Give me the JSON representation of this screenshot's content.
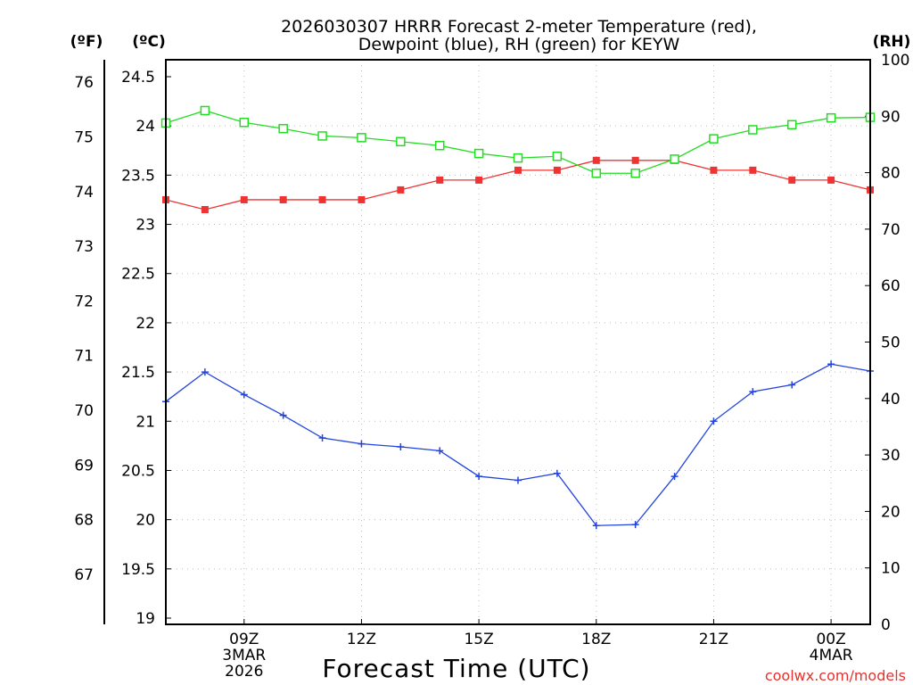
{
  "chart_data": {
    "type": "line",
    "title": [
      "2026030307 HRRR Forecast 2-meter Temperature (red),",
      "Dewpoint (blue), RH (green) for KEYW"
    ],
    "xlabel": "Forecast Time (UTC)",
    "credit": "coolwx.com/models",
    "units": {
      "fahrenheit": "(ºF)",
      "celsius": "(ºC)",
      "rh": "(RH)"
    },
    "x_hours": [
      7,
      8,
      9,
      10,
      11,
      12,
      13,
      14,
      15,
      16,
      17,
      18,
      19,
      20,
      21,
      22,
      23,
      24,
      25
    ],
    "xlim": [
      7,
      25
    ],
    "x_ticks": [
      {
        "hour": 9,
        "lines": [
          "09Z",
          "3MAR",
          "2026"
        ]
      },
      {
        "hour": 12,
        "lines": [
          "12Z"
        ]
      },
      {
        "hour": 15,
        "lines": [
          "15Z"
        ]
      },
      {
        "hour": 18,
        "lines": [
          "18Z"
        ]
      },
      {
        "hour": 21,
        "lines": [
          "21Z"
        ]
      },
      {
        "hour": 24,
        "lines": [
          "00Z",
          "4MAR"
        ]
      }
    ],
    "y_celsius": {
      "ylim": [
        19,
        24.5
      ],
      "ticks": [
        "19",
        "19.5",
        "20",
        "20.5",
        "21",
        "21.5",
        "22",
        "22.5",
        "23",
        "23.5",
        "24",
        "24.5"
      ]
    },
    "y_fahrenheit": {
      "ticks": [
        "67",
        "68",
        "69",
        "70",
        "71",
        "72",
        "73",
        "74",
        "75",
        "76"
      ]
    },
    "y_rh": {
      "ylim": [
        0,
        100
      ],
      "ticks": [
        "0",
        "10",
        "20",
        "30",
        "40",
        "50",
        "60",
        "70",
        "80",
        "90",
        "100"
      ]
    },
    "series": [
      {
        "name": "2-meter Temperature",
        "color": "#ee3333",
        "marker": "filled-square",
        "axis": "celsius",
        "values": [
          23.25,
          23.15,
          23.25,
          23.25,
          23.25,
          23.25,
          23.35,
          23.45,
          23.45,
          23.55,
          23.55,
          23.65,
          23.65,
          23.65,
          23.55,
          23.55,
          23.45,
          23.45,
          23.35
        ]
      },
      {
        "name": "Dewpoint",
        "color": "#2244dd",
        "marker": "plus",
        "axis": "celsius",
        "values": [
          21.2,
          21.5,
          21.27,
          21.06,
          20.83,
          20.77,
          20.74,
          20.7,
          20.44,
          20.4,
          20.47,
          19.94,
          19.95,
          20.44,
          21.0,
          21.3,
          21.37,
          21.58,
          21.51
        ]
      },
      {
        "name": "RH",
        "color": "#22dd22",
        "marker": "open-square",
        "axis": "rh",
        "values": [
          88.8,
          91.0,
          88.9,
          87.8,
          86.5,
          86.2,
          85.5,
          84.8,
          83.4,
          82.6,
          82.9,
          79.9,
          79.9,
          82.4,
          86.0,
          87.6,
          88.5,
          89.7,
          89.8
        ]
      }
    ],
    "grid": true
  }
}
